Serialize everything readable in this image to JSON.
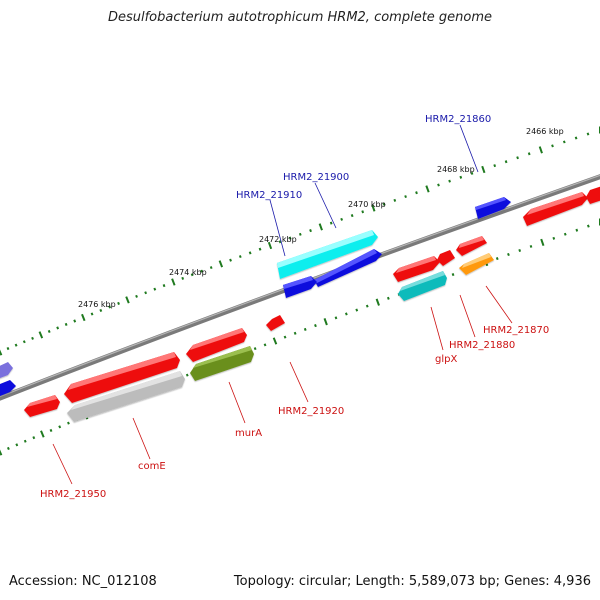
{
  "title": "Desulfobacterium autotrophicum HRM2, complete genome",
  "footer": {
    "accession": "Accession: NC_012108",
    "stats": "Topology: circular; Length: 5,589,073 bp; Genes: 4,936"
  },
  "colors": {
    "backbone": "#7a7a7a",
    "ticks": "#1f7a1f",
    "label_forward": "#1a1aaa",
    "label_reverse": "#cc1111",
    "red": "#ee1111",
    "blue": "#1111dd",
    "cyan": "#11eeee",
    "teal": "#11bbbb",
    "olive": "#6b8f1f",
    "gray": "#bcbcbc",
    "orange": "#ff9911",
    "purple": "#7a70dd"
  },
  "scale_labels": [
    "2466 kbp",
    "2468 kbp",
    "2470 kbp",
    "2472 kbp",
    "2474 kbp",
    "2476 kbp"
  ],
  "forward_labels": [
    "HRM2_21860",
    "HRM2_21900",
    "HRM2_21910"
  ],
  "reverse_labels": [
    "HRM2_21870",
    "HRM2_21880",
    "glpX",
    "HRM2_21920",
    "murA",
    "comE",
    "HRM2_21950"
  ]
}
